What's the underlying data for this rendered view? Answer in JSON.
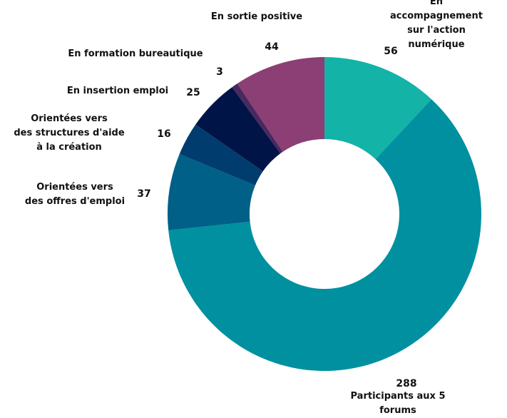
{
  "chart_data": {
    "type": "donut",
    "categories": [
      "En accompagnement\nsur l'action numérique",
      "Participants aux 5 forums",
      "Orientées vers\ndes offres d'emploi",
      "Orientées vers\ndes structures d'aide\nà la création",
      "En insertion emploi",
      "En formation bureautique",
      "En sortie positive"
    ],
    "values": [
      56,
      288,
      37,
      16,
      25,
      3,
      44
    ],
    "colors": [
      "#14b3a8",
      "#0090a0",
      "#006088",
      "#003d6e",
      "#001448",
      "#4a2860",
      "#8b3f74"
    ]
  }
}
